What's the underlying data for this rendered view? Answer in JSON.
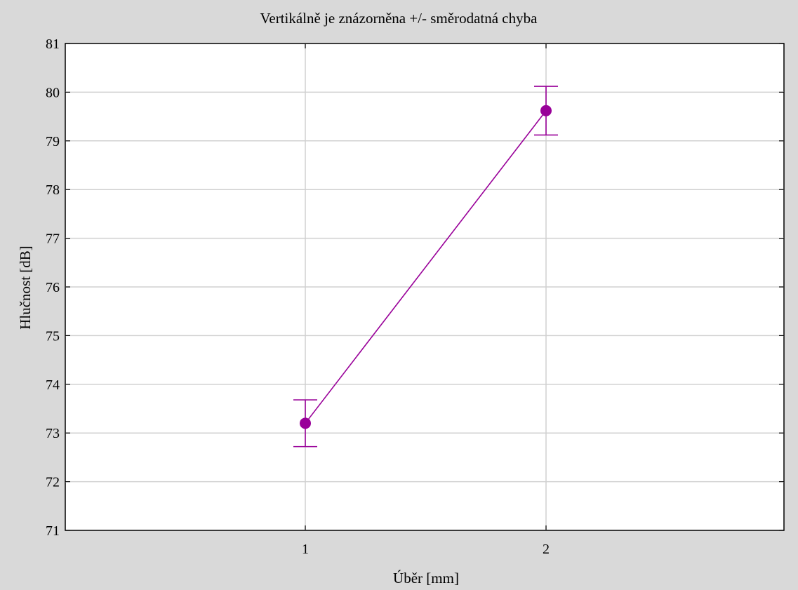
{
  "chart_data": {
    "type": "line",
    "title": "Vertikálně je znázorněna +/- směrodatná chyba",
    "xlabel": "Úběr [mm]",
    "ylabel": "Hlučnost [dB]",
    "categories": [
      "1",
      "2"
    ],
    "series": [
      {
        "values": [
          73.2,
          79.62
        ],
        "error_low": [
          72.72,
          79.12
        ],
        "error_high": [
          73.68,
          80.12
        ]
      }
    ],
    "ylim": [
      71,
      81
    ],
    "yticks": [
      71,
      72,
      73,
      74,
      75,
      76,
      77,
      78,
      79,
      80,
      81
    ],
    "grid": true,
    "colors": {
      "series": "#990099",
      "grid": "#d0d0d0",
      "background": "#d9d9d9",
      "plot_background": "#ffffff"
    }
  }
}
